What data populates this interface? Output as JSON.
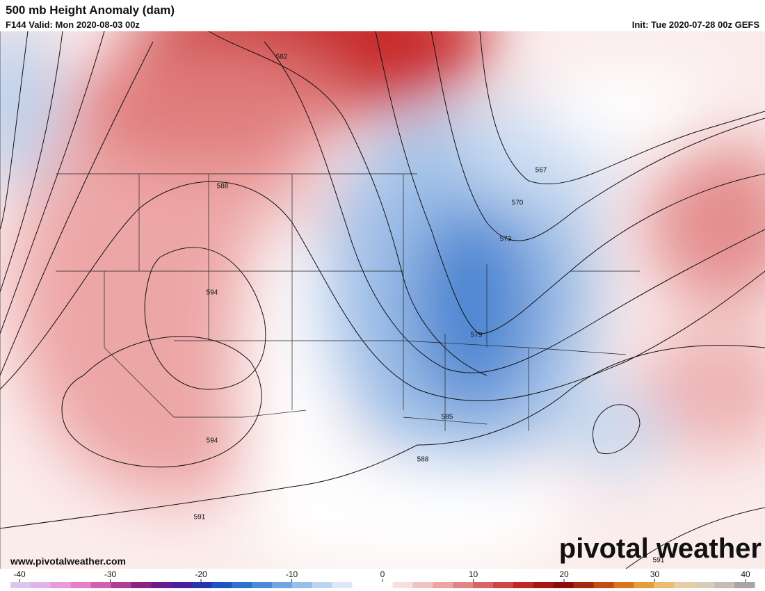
{
  "header": {
    "title": "500 mb Height Anomaly (dam)",
    "valid": "F144 Valid: Mon 2020-08-03 00z",
    "init": "Init: Tue 2020-07-28 00z GEFS"
  },
  "map": {
    "contour_labels": [
      "582",
      "588",
      "567",
      "570",
      "573",
      "594",
      "579",
      "585",
      "594",
      "588",
      "591",
      "591"
    ]
  },
  "footer": {
    "website": "www.pivotalweather.com",
    "logo": "pivotal weather"
  },
  "colorbar": {
    "range": [
      -40,
      40
    ],
    "ticks": [
      -40,
      -30,
      -20,
      -10,
      0,
      10,
      20,
      30,
      40
    ],
    "colors": [
      "#dcc6ee",
      "#e2b3e6",
      "#e79bd9",
      "#e680c6",
      "#d25fb0",
      "#b03e98",
      "#8b2585",
      "#6a1c8c",
      "#4a1f9a",
      "#2a35ad",
      "#1f55c0",
      "#2f71cf",
      "#4a8bd9",
      "#6fa6e2",
      "#96c0ea",
      "#bcd6f1",
      "#dde9f7",
      "#ffffff",
      "#ffffff",
      "#f9e0e0",
      "#f3c3c3",
      "#eba4a4",
      "#e28585",
      "#d86565",
      "#cd4545",
      "#c22626",
      "#a81515",
      "#8e0c0c",
      "#a52a10",
      "#c24d14",
      "#d9761d",
      "#e59c3a",
      "#e9bc6f",
      "#e4cfa4",
      "#d8cdb9",
      "#c4bcb5",
      "#aaa4a4"
    ]
  }
}
